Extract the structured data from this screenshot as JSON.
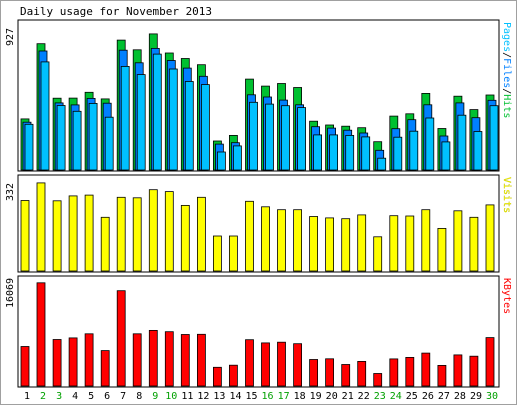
{
  "chart_data": {
    "type": "bar",
    "title": "Daily usage for November 2013",
    "categories": [
      "1",
      "2",
      "3",
      "4",
      "5",
      "6",
      "7",
      "8",
      "9",
      "10",
      "11",
      "12",
      "13",
      "14",
      "15",
      "16",
      "17",
      "18",
      "19",
      "20",
      "21",
      "22",
      "23",
      "24",
      "25",
      "26",
      "27",
      "28",
      "29",
      "30"
    ],
    "weekend_days": [
      "2",
      "3",
      "9",
      "10",
      "16",
      "17",
      "23",
      "24",
      "30"
    ],
    "panels": [
      {
        "id": "pages-files-hits",
        "ylabel_parts": [
          "Pages",
          "Files",
          "Hits"
        ],
        "ylabel_sep": "/",
        "max_label": "927",
        "ylim": [
          0,
          927
        ],
        "series": [
          {
            "name": "Hits",
            "color": "#00c030",
            "values": [
              329,
              813,
              462,
              463,
              500,
              458,
              836,
              774,
              876,
              753,
              718,
              678,
              187,
              223,
              585,
              540,
              557,
              531,
              314,
              290,
              282,
              272,
              182,
              347,
              362,
              493,
              267,
              475,
              389,
              483
            ]
          },
          {
            "name": "Files",
            "color": "#0080ff",
            "values": [
              308,
              766,
              432,
              419,
              461,
              430,
              771,
              690,
              783,
              705,
              656,
              603,
              167,
              176,
              484,
              470,
              450,
              420,
              279,
              270,
              256,
              238,
              127,
              266,
              324,
              420,
              219,
              432,
              337,
              449
            ]
          },
          {
            "name": "Pages",
            "color": "#00c0ff",
            "values": [
              294,
              696,
              415,
              378,
              429,
              340,
              667,
              614,
              746,
              650,
              570,
              550,
              116,
              155,
              436,
              424,
              414,
              402,
              226,
              226,
              223,
              213,
              76,
              211,
              250,
              335,
              181,
              353,
              248,
              414
            ]
          }
        ]
      },
      {
        "id": "visits",
        "ylabel_parts": [
          "Visits"
        ],
        "max_label": "332",
        "ylim": [
          0,
          332
        ],
        "series": [
          {
            "name": "Visits",
            "color": "#ffff00",
            "values": [
              260,
              325,
              259,
              277,
              280,
              198,
              272,
              270,
              300,
              293,
              242,
              272,
              129,
              129,
              257,
              237,
              226,
              226,
              201,
              196,
              193,
              207,
              126,
              204,
              203,
              226,
              157,
              222,
              198,
              244
            ]
          }
        ]
      },
      {
        "id": "kbytes",
        "ylabel_parts": [
          "KBytes"
        ],
        "max_label": "16069",
        "ylim": [
          0,
          16069
        ],
        "series": [
          {
            "name": "KBytes",
            "color": "#ff0000",
            "values": [
              6099,
              15944,
              7183,
              7430,
              8060,
              5465,
              14720,
              8060,
              8586,
              8388,
              7963,
              7987,
              2883,
              3212,
              7148,
              6658,
              6775,
              6530,
              4091,
              4209,
              3317,
              3795,
              1934,
              4185,
              4418,
              5083,
              3178,
              4800,
              4602,
              7479
            ]
          }
        ]
      }
    ]
  }
}
